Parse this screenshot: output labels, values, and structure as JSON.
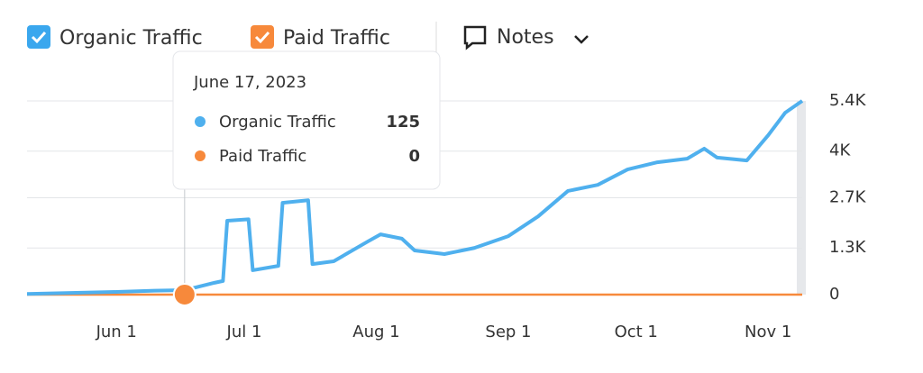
{
  "chart_data": {
    "type": "line",
    "x": [
      "2023-05-11",
      "2023-06-01",
      "2023-06-10",
      "2023-06-17",
      "2023-06-24",
      "2023-06-26",
      "2023-06-27",
      "2023-07-02",
      "2023-07-03",
      "2023-07-09",
      "2023-07-10",
      "2023-07-16",
      "2023-07-17",
      "2023-07-22",
      "2023-07-30",
      "2023-08-02",
      "2023-08-07",
      "2023-08-10",
      "2023-08-17",
      "2023-08-24",
      "2023-09-01",
      "2023-09-08",
      "2023-09-15",
      "2023-09-22",
      "2023-09-29",
      "2023-10-06",
      "2023-10-13",
      "2023-10-17",
      "2023-10-20",
      "2023-10-27",
      "2023-11-01",
      "2023-11-05",
      "2023-11-09"
    ],
    "series": [
      {
        "name": "Organic Traffic",
        "color": "#4fb0ee",
        "values": [
          20,
          75,
          110,
          125,
          330,
          380,
          2060,
          2100,
          680,
          800,
          2560,
          2630,
          850,
          930,
          1480,
          1680,
          1560,
          1230,
          1130,
          1300,
          1630,
          2180,
          2890,
          3060,
          3490,
          3690,
          3790,
          4070,
          3820,
          3740,
          4440,
          5070,
          5400
        ]
      },
      {
        "name": "Paid Traffic",
        "color": "#f7893b",
        "values": [
          0,
          0,
          0,
          0,
          0,
          0,
          0,
          0,
          0,
          0,
          0,
          0,
          0,
          0,
          0,
          0,
          0,
          0,
          0,
          0,
          0,
          0,
          0,
          0,
          0,
          0,
          0,
          0,
          0,
          0,
          0,
          0,
          0
        ]
      }
    ],
    "xlim": [
      "2023-05-11",
      "2023-11-09"
    ],
    "xticks": [
      {
        "value": "2023-06-01",
        "label": "Jun 1"
      },
      {
        "value": "2023-07-01",
        "label": "Jul 1"
      },
      {
        "value": "2023-08-01",
        "label": "Aug 1"
      },
      {
        "value": "2023-09-01",
        "label": "Sep 1"
      },
      {
        "value": "2023-10-01",
        "label": "Oct 1"
      },
      {
        "value": "2023-11-01",
        "label": "Nov 1"
      }
    ],
    "ylim": [
      0,
      5400
    ],
    "yticks": [
      0,
      {
        "value": 1300,
        "label": "1.3K"
      },
      {
        "value": 2700,
        "label": "2.7K"
      },
      {
        "value": 4000,
        "label": "4K"
      },
      {
        "value": 5400,
        "label": "5.4K"
      }
    ],
    "grid": true,
    "notes": "Notes",
    "hover": {
      "date": "June 17, 2023",
      "x": "2023-06-17",
      "values": [
        125,
        0
      ]
    }
  }
}
